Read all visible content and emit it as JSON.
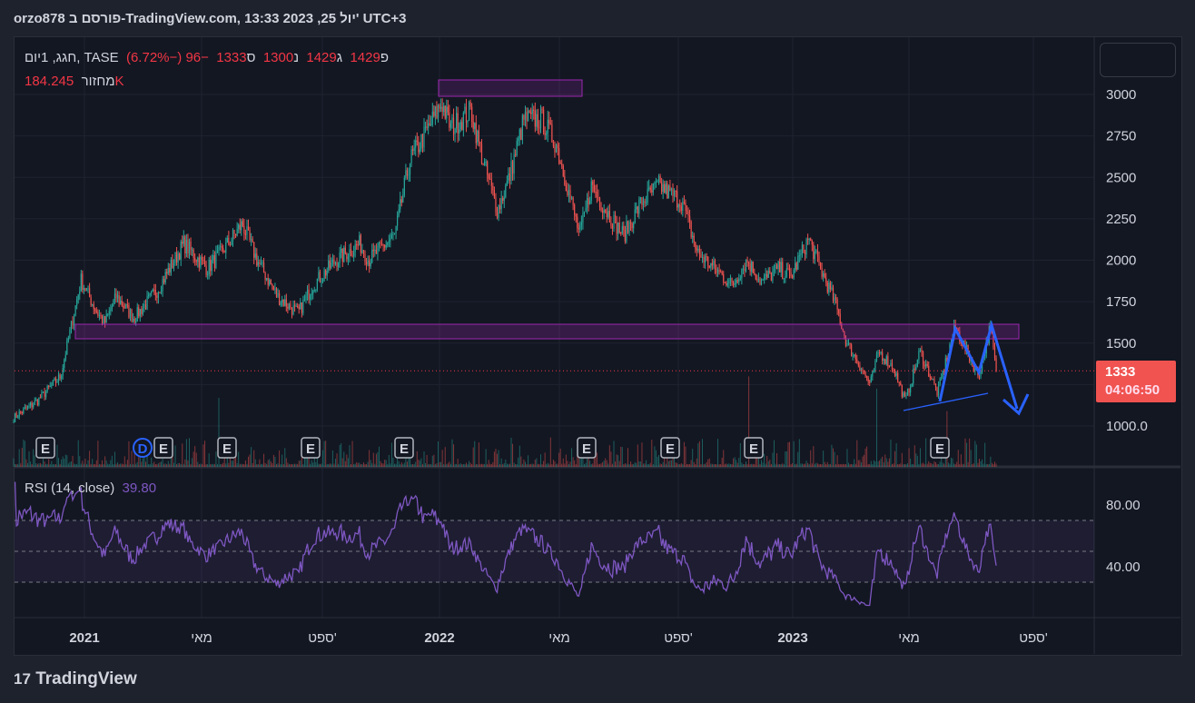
{
  "header": {
    "title": "orzo878 פורסם ב-TradingView.com, 13:33 2023 ,25 יול' UTC+3"
  },
  "legend": {
    "symbol": "חגג, 1יום, TASE",
    "open_label": "פ",
    "open": "1429",
    "high_label": "ג",
    "high": "1429",
    "low_label": "נ",
    "low": "1300",
    "close_label": "ס",
    "close": "1333",
    "change": "−96 (−6.72%)",
    "volume_label": "מחזור",
    "volume": "184.245K"
  },
  "rsi_legend": {
    "label": "RSI (14, close)",
    "value": "39.80"
  },
  "last_price": {
    "price": "1333",
    "countdown": "04:06:50"
  },
  "colors": {
    "up": "#26a69a",
    "down": "#ef5350",
    "rsi": "#7e57c2",
    "box": "#9c27b0",
    "arrow": "#2962ff"
  },
  "events": [
    "E",
    "D",
    "E",
    "E",
    "E",
    "E",
    "E",
    "E",
    "E",
    "E"
  ],
  "logo": "TradingView",
  "chart_data": {
    "type": "candlestick",
    "price_axis": {
      "ticks": [
        "3000",
        "2750",
        "2500",
        "2250",
        "2000",
        "1750",
        "1500",
        "1000.0"
      ],
      "range": [
        1000,
        3000
      ]
    },
    "rsi_axis": {
      "ticks": [
        "80.00",
        "40.00"
      ],
      "bands": [
        30,
        50,
        70
      ]
    },
    "time_axis": {
      "ticks": [
        "2021",
        "מאי",
        "ספט'",
        "2022",
        "מאי",
        "ספט'",
        "2023",
        "מאי",
        "ספט'"
      ]
    },
    "close_keypoints_by_month_index": [
      [
        0,
        1050
      ],
      [
        0.8,
        1150
      ],
      [
        1.6,
        1300
      ],
      [
        1.9,
        1550
      ],
      [
        2.3,
        1880
      ],
      [
        2.8,
        1700
      ],
      [
        3.1,
        1620
      ],
      [
        3.5,
        1780
      ],
      [
        4.1,
        1650
      ],
      [
        4.9,
        1820
      ],
      [
        5.8,
        2100
      ],
      [
        6.6,
        1950
      ],
      [
        7.1,
        2050
      ],
      [
        7.8,
        2220
      ],
      [
        8.3,
        2000
      ],
      [
        9,
        1780
      ],
      [
        9.7,
        1680
      ],
      [
        10.2,
        1850
      ],
      [
        11,
        2000
      ],
      [
        11.8,
        2100
      ],
      [
        12.1,
        2000
      ],
      [
        13,
        2150
      ],
      [
        13.5,
        2600
      ],
      [
        14,
        2750
      ],
      [
        14.6,
        2950
      ],
      [
        14.9,
        2800
      ],
      [
        15.6,
        2900
      ],
      [
        16,
        2600
      ],
      [
        16.5,
        2300
      ],
      [
        16.9,
        2500
      ],
      [
        17.4,
        2850
      ],
      [
        18,
        2850
      ],
      [
        18.5,
        2700
      ],
      [
        18.8,
        2500
      ],
      [
        19.3,
        2150
      ],
      [
        19.7,
        2450
      ],
      [
        20.2,
        2300
      ],
      [
        20.8,
        2150
      ],
      [
        21.4,
        2350
      ],
      [
        22,
        2450
      ],
      [
        22.8,
        2350
      ],
      [
        23.3,
        2050
      ],
      [
        23.9,
        1950
      ],
      [
        24.5,
        1850
      ],
      [
        25,
        2000
      ],
      [
        25.5,
        1870
      ],
      [
        26.1,
        1950
      ],
      [
        26.5,
        1900
      ],
      [
        27.1,
        2130
      ],
      [
        27.5,
        1950
      ],
      [
        28,
        1750
      ],
      [
        28.4,
        1500
      ],
      [
        28.9,
        1350
      ],
      [
        29.2,
        1250
      ],
      [
        29.5,
        1450
      ],
      [
        30,
        1350
      ],
      [
        30.4,
        1150
      ],
      [
        30.9,
        1450
      ],
      [
        31.5,
        1200
      ],
      [
        32.1,
        1600
      ],
      [
        32.5,
        1450
      ],
      [
        32.9,
        1300
      ],
      [
        33.3,
        1600
      ],
      [
        33.5,
        1333
      ]
    ],
    "last_close": 1333
  }
}
